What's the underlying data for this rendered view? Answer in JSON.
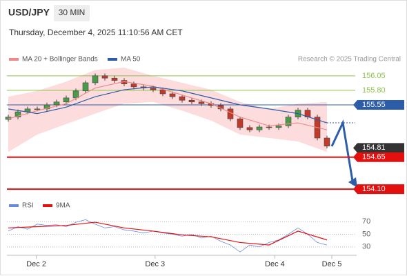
{
  "header": {
    "symbol": "USD/JPY",
    "interval": "30 MIN",
    "datetime": "Thursday, December 4, 2025 11:10:56 AM CET"
  },
  "chart_data": [
    {
      "type": "candlestick",
      "credit": "Research © 2025 Trading Central",
      "xlim": [
        -0.5,
        36
      ],
      "ylim": [
        153.9,
        156.25
      ],
      "xticks": [
        {
          "value": 2.9,
          "label": "Dec 2"
        },
        {
          "value": 15.2,
          "label": "Dec 3"
        },
        {
          "value": 27.6,
          "label": "Dec 4"
        },
        {
          "value": 33.5,
          "label": "Dec 5"
        }
      ],
      "up_color": "#4a9a4a",
      "down_color": "#c0392b",
      "open": [
        155.3,
        155.34,
        155.43,
        155.48,
        155.48,
        155.55,
        155.6,
        155.67,
        155.79,
        155.93,
        156.05,
        156.01,
        155.97,
        155.91,
        155.86,
        155.84,
        155.81,
        155.74,
        155.69,
        155.63,
        155.6,
        155.57,
        155.54,
        155.48,
        155.31,
        155.16,
        155.12,
        155.17,
        155.16,
        155.19,
        155.34,
        155.46,
        155.34,
        154.98
      ],
      "high": [
        155.38,
        155.47,
        155.52,
        155.52,
        155.59,
        155.64,
        155.71,
        155.83,
        155.97,
        156.09,
        156.09,
        156.05,
        156.01,
        155.95,
        155.9,
        155.88,
        155.85,
        155.78,
        155.73,
        155.67,
        155.64,
        155.61,
        155.58,
        155.52,
        155.35,
        155.2,
        155.21,
        155.21,
        155.23,
        155.38,
        155.5,
        155.5,
        155.38,
        155.02
      ],
      "low": [
        155.26,
        155.3,
        155.39,
        155.44,
        155.44,
        155.51,
        155.56,
        155.63,
        155.75,
        155.89,
        155.97,
        155.93,
        155.87,
        155.82,
        155.8,
        155.77,
        155.7,
        155.65,
        155.59,
        155.56,
        155.53,
        155.5,
        155.44,
        155.27,
        155.12,
        155.08,
        155.08,
        155.12,
        155.12,
        155.15,
        155.3,
        155.3,
        154.94,
        154.8
      ],
      "close": [
        155.34,
        155.43,
        155.48,
        155.48,
        155.55,
        155.6,
        155.67,
        155.79,
        155.93,
        156.05,
        156.01,
        155.97,
        155.91,
        155.86,
        155.84,
        155.81,
        155.74,
        155.69,
        155.63,
        155.6,
        155.57,
        155.54,
        155.48,
        155.31,
        155.16,
        155.12,
        155.17,
        155.16,
        155.19,
        155.34,
        155.46,
        155.34,
        154.98,
        154.84
      ],
      "series": [
        {
          "name": "MA 20 + Bollinger Bands",
          "color": "#f08a8a",
          "band_color": "#fbd3d3",
          "x": [
            0,
            3,
            6,
            9,
            12,
            15,
            18,
            21,
            24,
            27,
            30,
            33
          ],
          "values": [
            155.31,
            155.45,
            155.57,
            155.84,
            155.95,
            155.87,
            155.72,
            155.57,
            155.34,
            155.19,
            155.24,
            155.12
          ],
          "upper": [
            155.69,
            155.79,
            155.95,
            156.15,
            156.19,
            156.05,
            155.93,
            155.81,
            155.6,
            155.48,
            155.57,
            155.6
          ],
          "lower": [
            154.74,
            155.04,
            155.22,
            155.4,
            155.57,
            155.6,
            155.45,
            155.28,
            155.04,
            154.98,
            154.92,
            154.74
          ]
        },
        {
          "name": "MA 50",
          "color": "#2d5ca8",
          "x": [
            0,
            3,
            6,
            9,
            12,
            15,
            18,
            21,
            24,
            27,
            30,
            33
          ],
          "values": [
            155.48,
            155.4,
            155.51,
            155.69,
            155.81,
            155.86,
            155.79,
            155.67,
            155.55,
            155.48,
            155.4,
            155.24
          ]
        }
      ],
      "levels": [
        {
          "value": 156.05,
          "color": "#8bc34a",
          "style": "text"
        },
        {
          "value": 155.8,
          "label": "155.80",
          "color": "#8bc34a",
          "style": "text"
        },
        {
          "value": 155.55,
          "color": "#2d5ca8",
          "style": "box"
        },
        {
          "value": 154.81,
          "color": "#333333",
          "style": "box-noline"
        },
        {
          "value": 154.65,
          "color": "#e31010",
          "style": "box"
        },
        {
          "value": 154.1,
          "label": "154.10",
          "color": "#e31010",
          "style": "box"
        }
      ]
    },
    {
      "type": "line",
      "xlim": [
        -0.5,
        36
      ],
      "ylim": [
        20,
        80
      ],
      "yticks": [
        30,
        50,
        70
      ],
      "series": [
        {
          "name": "RSI",
          "color": "#6a8ae0",
          "values": [
            55,
            62,
            58,
            66,
            64,
            65,
            62,
            69,
            73,
            66,
            60,
            62,
            57,
            55,
            52,
            55,
            52,
            50,
            47,
            50,
            44,
            47,
            39,
            33,
            22,
            33,
            30,
            37,
            41,
            50,
            60,
            50,
            37,
            33
          ]
        },
        {
          "name": "9MA",
          "color": "#e31010",
          "x": [
            0,
            3,
            6,
            9,
            12,
            15,
            18,
            21,
            24,
            27,
            30,
            33
          ],
          "values": [
            60,
            62,
            64,
            69,
            60,
            55,
            49,
            46,
            37,
            33,
            55,
            41
          ]
        }
      ]
    }
  ]
}
